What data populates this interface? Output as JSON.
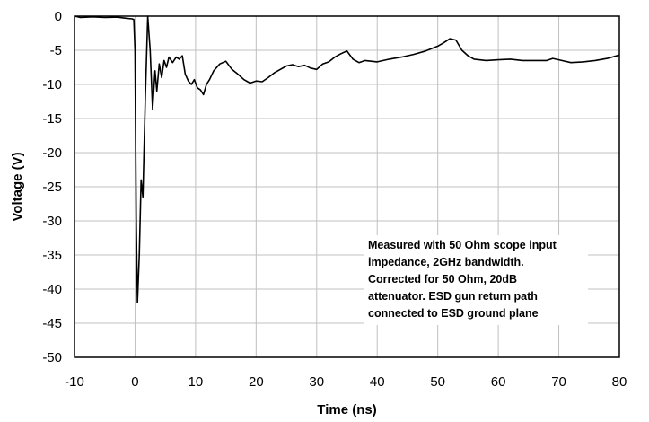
{
  "chart_data": {
    "type": "line",
    "title": "",
    "xlabel": "Time (ns)",
    "ylabel": "Voltage (V)",
    "xlim": [
      -10,
      80
    ],
    "ylim": [
      -50,
      0
    ],
    "xticks": [
      -10,
      0,
      10,
      20,
      30,
      40,
      50,
      60,
      70,
      80
    ],
    "yticks": [
      0,
      -5,
      -10,
      -15,
      -20,
      -25,
      -30,
      -35,
      -40,
      -45,
      -50
    ],
    "grid": true,
    "legend": "none",
    "line_color": "#000000",
    "grid_color": "#c0c0c0",
    "annotation_lines": [
      "Measured with 50 Ohm scope input",
      "impedance, 2GHz bandwidth.",
      "Corrected for 50 Ohm, 20dB",
      "attenuator. ESD gun return path",
      "connected to ESD ground plane"
    ],
    "series": [
      {
        "x": [
          -10,
          -9,
          -7,
          -5,
          -3,
          -1.5,
          -0.5,
          -0.2,
          0,
          0.2,
          0.4,
          0.7,
          1.0,
          1.3,
          1.7,
          2.1,
          2.5,
          2.9,
          3.3,
          3.6,
          4.0,
          4.4,
          4.8,
          5.2,
          5.6,
          6.2,
          6.8,
          7.3,
          7.8,
          8.3,
          8.8,
          9.3,
          9.8,
          10.3,
          10.8,
          11.3,
          11.8,
          12.3,
          13,
          14,
          15,
          16,
          17,
          18,
          19,
          20,
          21,
          22,
          23,
          24,
          25,
          26,
          27,
          28,
          29,
          30,
          31,
          32,
          33,
          34,
          35,
          36,
          37,
          38,
          40,
          42,
          44,
          46,
          48,
          50,
          51,
          52,
          53,
          54,
          55,
          56,
          58,
          60,
          62,
          64,
          66,
          68,
          69,
          70,
          72,
          74,
          76,
          78,
          80
        ],
        "y": [
          0,
          -0.2,
          -0.1,
          -0.2,
          -0.15,
          -0.3,
          -0.4,
          -0.5,
          -5,
          -30,
          -42,
          -35,
          -24,
          -26.5,
          -12,
          0,
          -5,
          -13.7,
          -8,
          -11,
          -7,
          -9,
          -6.5,
          -7.5,
          -6,
          -6.8,
          -6,
          -6.3,
          -5.8,
          -8.5,
          -9.5,
          -10,
          -9.3,
          -10.5,
          -10.8,
          -11.5,
          -10,
          -9.3,
          -8,
          -7,
          -6.6,
          -7.8,
          -8.5,
          -9.3,
          -9.8,
          -9.5,
          -9.6,
          -9.0,
          -8.3,
          -7.8,
          -7.3,
          -7.1,
          -7.4,
          -7.2,
          -7.6,
          -7.8,
          -7.0,
          -6.7,
          -6.0,
          -5.5,
          -5.1,
          -6.3,
          -6.8,
          -6.5,
          -6.7,
          -6.3,
          -6.0,
          -5.6,
          -5.1,
          -4.4,
          -3.9,
          -3.3,
          -3.5,
          -5.0,
          -5.8,
          -6.3,
          -6.5,
          -6.4,
          -6.3,
          -6.5,
          -6.5,
          -6.5,
          -6.2,
          -6.4,
          -6.8,
          -6.7,
          -6.5,
          -6.2,
          -5.7
        ]
      }
    ]
  }
}
